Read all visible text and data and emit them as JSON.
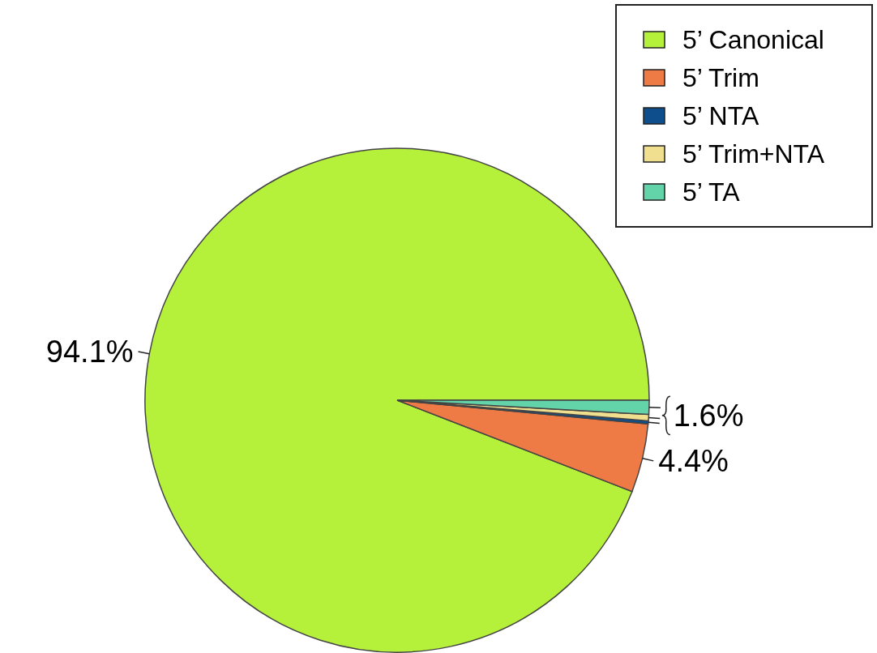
{
  "chart_data": {
    "type": "pie",
    "categories": [
      "5’ Canonical",
      "5’ Trim",
      "5’ NTA",
      "5’ Trim+NTA",
      "5’ TA"
    ],
    "values": [
      94.1,
      4.4,
      0.2,
      0.4,
      0.9
    ],
    "colors": [
      "#b5f03b",
      "#ee7a45",
      "#0e4e8c",
      "#f0df8e",
      "#63d3a9"
    ],
    "value_labels": [
      "94.1%",
      "4.4%",
      null,
      null,
      null
    ],
    "annotations": [
      "1.6%"
    ],
    "legend": "top right"
  }
}
